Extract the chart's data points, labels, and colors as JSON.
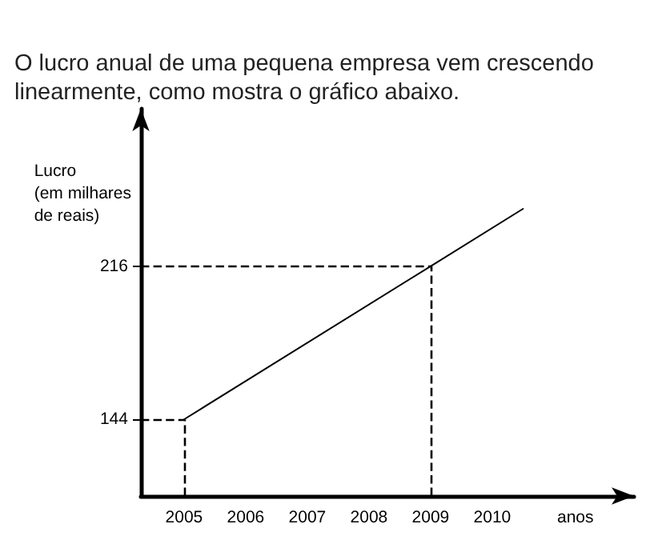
{
  "chart_data": {
    "type": "line",
    "title": "O lucro anual de uma pequena empresa vem crescendo linearmente, como mostra o gráfico abaixo.",
    "ylabel": "Lucro\n(em milhares\nde reais)",
    "xlabel": "anos",
    "x": [
      2005,
      2009,
      2010.5
    ],
    "series": [
      {
        "color": "#000000",
        "values": [
          144,
          216,
          243
        ]
      }
    ],
    "xlim": [
      2004.3,
      2012.3
    ],
    "xticks": [
      2005,
      2006,
      2007,
      2008,
      2009,
      2010
    ],
    "ylim": [
      108,
      290
    ],
    "yticks": [
      144,
      216
    ],
    "ref_lines": [
      {
        "axis": "x",
        "value": 2005,
        "line_style": "dashed",
        "color": "#000000"
      },
      {
        "axis": "x",
        "value": 2009,
        "line_style": "dashed",
        "color": "#000000"
      },
      {
        "axis": "y",
        "value": 144,
        "line_style": "dashed",
        "color": "#000000"
      },
      {
        "axis": "y",
        "value": 216,
        "line_style": "dashed",
        "color": "#000000"
      }
    ],
    "grid": false,
    "marker": "none",
    "line_style": "solid"
  }
}
